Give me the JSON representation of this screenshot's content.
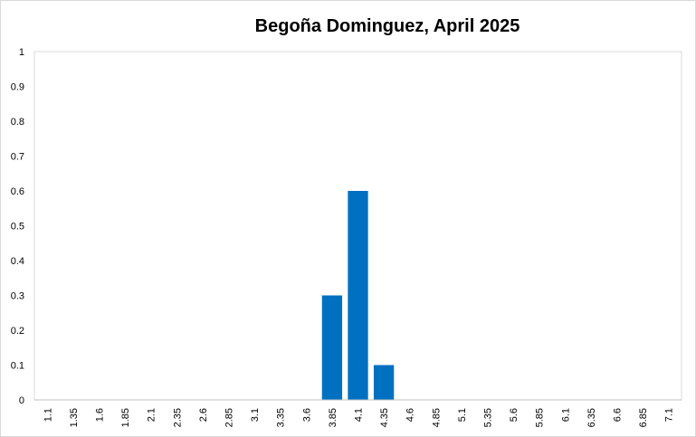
{
  "chart_data": {
    "type": "bar",
    "title": "Begoña Dominguez, April 2025",
    "xlabel": "",
    "ylabel": "",
    "ylim": [
      0,
      1
    ],
    "yticks": [
      "0",
      "0.1",
      "0.2",
      "0.3",
      "0.4",
      "0.5",
      "0.6",
      "0.7",
      "0.8",
      "0.9",
      "1"
    ],
    "categories": [
      "1.1",
      "1.35",
      "1.6",
      "1.85",
      "2.1",
      "2.35",
      "2.6",
      "2.85",
      "3.1",
      "3.35",
      "3.6",
      "3.85",
      "4.1",
      "4.35",
      "4.6",
      "4.85",
      "5.1",
      "5.35",
      "5.6",
      "5.85",
      "6.1",
      "6.35",
      "6.6",
      "6.85",
      "7.1"
    ],
    "values": [
      0,
      0,
      0,
      0,
      0,
      0,
      0,
      0,
      0,
      0,
      0,
      0.3,
      0.6,
      0.1,
      0,
      0,
      0,
      0,
      0,
      0,
      0,
      0,
      0,
      0,
      0
    ],
    "bar_color": "#0070C0",
    "grid": false,
    "legend": "none"
  }
}
